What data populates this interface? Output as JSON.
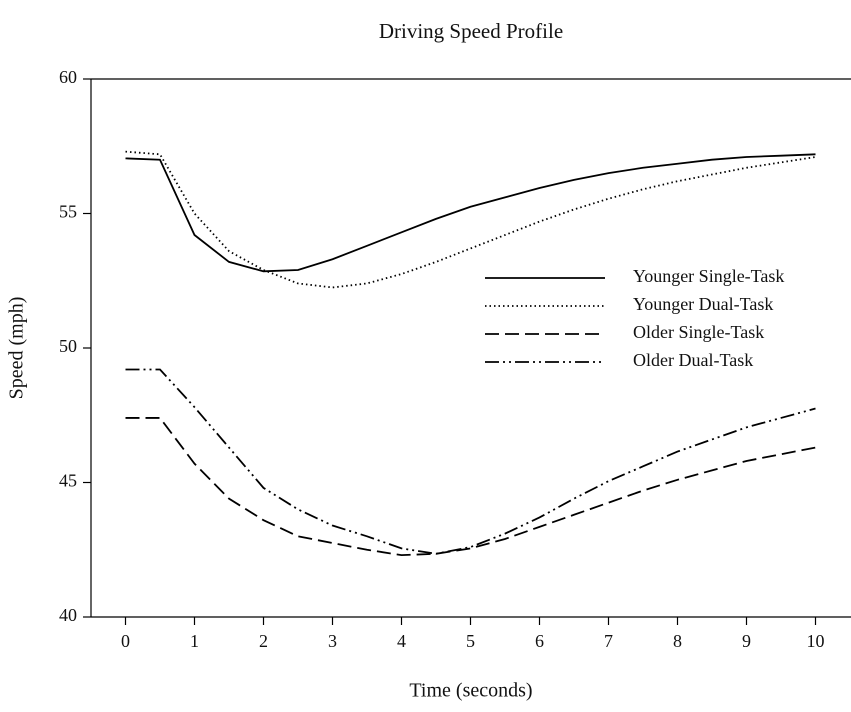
{
  "chart_data": {
    "type": "line",
    "title": "Driving Speed Profile",
    "x_label": "Time (seconds)",
    "y_label": "Speed (mph)",
    "x": [
      0,
      0.5,
      1,
      1.5,
      2,
      2.5,
      3,
      3.5,
      4,
      4.5,
      5,
      5.5,
      6,
      6.5,
      7,
      7.5,
      8,
      8.5,
      9,
      9.5,
      10
    ],
    "series": [
      {
        "name": "Younger Single-Task",
        "color": "#000000",
        "line_style": "solid",
        "values": [
          57.05,
          57.0,
          54.2,
          53.2,
          52.85,
          52.9,
          53.3,
          53.8,
          54.3,
          54.8,
          55.25,
          55.6,
          55.95,
          56.25,
          56.5,
          56.7,
          56.85,
          57.0,
          57.1,
          57.15,
          57.2
        ]
      },
      {
        "name": "Younger Dual-Task",
        "color": "#000000",
        "line_style": "dotted",
        "values": [
          57.3,
          57.2,
          55.0,
          53.6,
          52.9,
          52.4,
          52.25,
          52.4,
          52.75,
          53.2,
          53.7,
          54.2,
          54.7,
          55.15,
          55.55,
          55.9,
          56.2,
          56.45,
          56.7,
          56.9,
          57.1
        ]
      },
      {
        "name": "Older Single-Task",
        "color": "#000000",
        "line_style": "dashed",
        "values": [
          47.4,
          47.4,
          45.7,
          44.4,
          43.6,
          43.0,
          42.75,
          42.5,
          42.3,
          42.35,
          42.55,
          42.9,
          43.35,
          43.8,
          44.25,
          44.7,
          45.1,
          45.45,
          45.8,
          46.05,
          46.3
        ]
      },
      {
        "name": "Older Dual-Task",
        "color": "#000000",
        "line_style": "dashdotdot",
        "values": [
          49.2,
          49.2,
          47.8,
          46.3,
          44.8,
          44.0,
          43.4,
          43.0,
          42.55,
          42.35,
          42.6,
          43.1,
          43.7,
          44.4,
          45.05,
          45.6,
          46.15,
          46.6,
          47.05,
          47.4,
          47.75
        ]
      }
    ],
    "xlim": [
      -0.5,
      10.5
    ],
    "xticks": [
      0,
      1,
      2,
      3,
      4,
      5,
      6,
      7,
      8,
      9,
      10
    ],
    "ylim": [
      40,
      60
    ],
    "yticks": [
      40,
      45,
      50,
      55,
      60
    ],
    "grid": false,
    "legend": "right"
  }
}
